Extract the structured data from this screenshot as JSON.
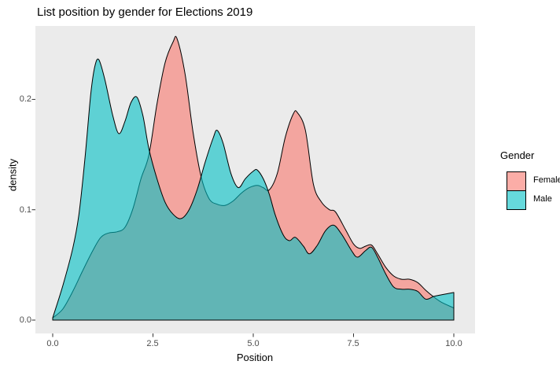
{
  "title": "List position by gender for Elections 2019",
  "chart_data": {
    "type": "area",
    "subtype": "overlapping-density",
    "title": "List position by gender for Elections 2019",
    "xlabel": "Position",
    "ylabel": "density",
    "x_ticks": [
      0,
      2.5,
      5,
      7.5,
      10
    ],
    "x_tick_labels": [
      "0.0",
      "2.5",
      "5.0",
      "7.5",
      "10.0"
    ],
    "y_ticks": [
      0,
      0.1,
      0.2
    ],
    "y_tick_labels": [
      "0.0",
      "0.1",
      "0.2"
    ],
    "xlim": [
      -0.43,
      10.53
    ],
    "ylim": [
      -0.012,
      0.2665
    ],
    "grid": false,
    "panel_color": "#EBEBEB",
    "outline_color": "#000000",
    "tick_label_color": "#4d4d4d",
    "fill_alpha": 0.6,
    "legend": {
      "title": "Gender",
      "position": "right",
      "entries": [
        {
          "label": "Female",
          "color": "#F8766D"
        },
        {
          "label": "Male",
          "color": "#00BFC4"
        }
      ]
    },
    "series": [
      {
        "name": "Female",
        "color": "#F8766D",
        "points": [
          [
            0.0,
            0.002
          ],
          [
            0.25,
            0.01
          ],
          [
            0.5,
            0.026
          ],
          [
            0.75,
            0.045
          ],
          [
            1.0,
            0.063
          ],
          [
            1.2,
            0.075
          ],
          [
            1.4,
            0.079
          ],
          [
            1.6,
            0.08
          ],
          [
            1.8,
            0.084
          ],
          [
            2.0,
            0.101
          ],
          [
            2.2,
            0.128
          ],
          [
            2.4,
            0.15
          ],
          [
            2.6,
            0.196
          ],
          [
            2.8,
            0.233
          ],
          [
            3.0,
            0.252
          ],
          [
            3.1,
            0.255
          ],
          [
            3.3,
            0.223
          ],
          [
            3.5,
            0.17
          ],
          [
            3.7,
            0.13
          ],
          [
            3.9,
            0.11
          ],
          [
            4.1,
            0.105
          ],
          [
            4.3,
            0.104
          ],
          [
            4.5,
            0.108
          ],
          [
            4.7,
            0.115
          ],
          [
            4.9,
            0.12
          ],
          [
            5.1,
            0.122
          ],
          [
            5.25,
            0.12
          ],
          [
            5.4,
            0.118
          ],
          [
            5.6,
            0.133
          ],
          [
            5.8,
            0.166
          ],
          [
            6.0,
            0.187
          ],
          [
            6.1,
            0.188
          ],
          [
            6.3,
            0.172
          ],
          [
            6.5,
            0.123
          ],
          [
            6.7,
            0.107
          ],
          [
            6.9,
            0.1
          ],
          [
            7.05,
            0.098
          ],
          [
            7.3,
            0.082
          ],
          [
            7.5,
            0.069
          ],
          [
            7.65,
            0.065
          ],
          [
            7.8,
            0.067
          ],
          [
            7.95,
            0.068
          ],
          [
            8.1,
            0.06
          ],
          [
            8.3,
            0.048
          ],
          [
            8.5,
            0.04
          ],
          [
            8.7,
            0.037
          ],
          [
            8.9,
            0.037
          ],
          [
            9.1,
            0.034
          ],
          [
            9.3,
            0.027
          ],
          [
            9.5,
            0.021
          ],
          [
            9.7,
            0.016
          ],
          [
            10.0,
            0.011
          ]
        ]
      },
      {
        "name": "Male",
        "color": "#00BFC4",
        "points": [
          [
            0.0,
            0.002
          ],
          [
            0.25,
            0.031
          ],
          [
            0.5,
            0.065
          ],
          [
            0.65,
            0.095
          ],
          [
            0.8,
            0.145
          ],
          [
            0.95,
            0.205
          ],
          [
            1.05,
            0.23
          ],
          [
            1.15,
            0.236
          ],
          [
            1.3,
            0.218
          ],
          [
            1.5,
            0.185
          ],
          [
            1.65,
            0.169
          ],
          [
            1.8,
            0.18
          ],
          [
            1.95,
            0.197
          ],
          [
            2.1,
            0.202
          ],
          [
            2.25,
            0.185
          ],
          [
            2.4,
            0.155
          ],
          [
            2.6,
            0.128
          ],
          [
            2.8,
            0.107
          ],
          [
            3.0,
            0.096
          ],
          [
            3.2,
            0.092
          ],
          [
            3.4,
            0.1
          ],
          [
            3.6,
            0.118
          ],
          [
            3.8,
            0.143
          ],
          [
            4.0,
            0.165
          ],
          [
            4.1,
            0.172
          ],
          [
            4.25,
            0.16
          ],
          [
            4.45,
            0.132
          ],
          [
            4.63,
            0.12
          ],
          [
            4.8,
            0.128
          ],
          [
            5.0,
            0.135
          ],
          [
            5.1,
            0.136
          ],
          [
            5.25,
            0.128
          ],
          [
            5.4,
            0.114
          ],
          [
            5.55,
            0.095
          ],
          [
            5.75,
            0.077
          ],
          [
            5.9,
            0.072
          ],
          [
            6.05,
            0.075
          ],
          [
            6.25,
            0.067
          ],
          [
            6.4,
            0.06
          ],
          [
            6.6,
            0.068
          ],
          [
            6.8,
            0.081
          ],
          [
            7.0,
            0.086
          ],
          [
            7.2,
            0.078
          ],
          [
            7.45,
            0.063
          ],
          [
            7.6,
            0.057
          ],
          [
            7.8,
            0.063
          ],
          [
            7.95,
            0.066
          ],
          [
            8.1,
            0.057
          ],
          [
            8.3,
            0.042
          ],
          [
            8.5,
            0.03
          ],
          [
            8.7,
            0.028
          ],
          [
            8.9,
            0.028
          ],
          [
            9.1,
            0.026
          ],
          [
            9.3,
            0.019
          ],
          [
            9.5,
            0.0215
          ],
          [
            9.7,
            0.023
          ],
          [
            10.0,
            0.025
          ]
        ]
      }
    ]
  }
}
